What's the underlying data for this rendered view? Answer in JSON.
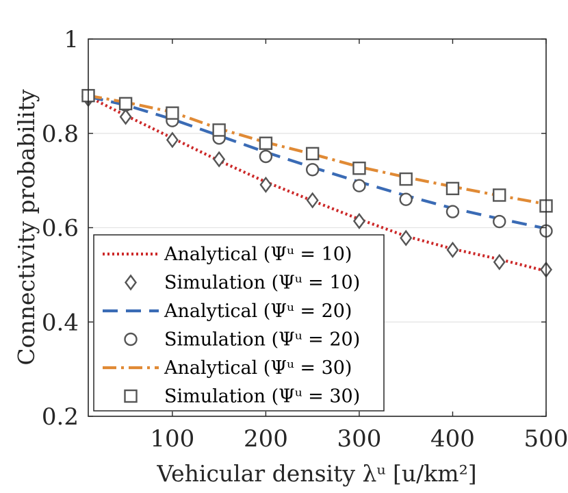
{
  "chart_data": {
    "type": "line",
    "xlabel": "Vehicular density λᵘ [u/km²]",
    "ylabel": "Connectivity probability",
    "xlim": [
      10,
      500
    ],
    "ylim": [
      0.2,
      1.0
    ],
    "xticks": [
      100,
      200,
      300,
      400,
      500
    ],
    "xtick_labels": [
      "100",
      "200",
      "300",
      "400",
      "500"
    ],
    "yticks": [
      0.2,
      0.4,
      0.6,
      0.8,
      1.0
    ],
    "ytick_labels": [
      "0.2",
      "0.4",
      "0.6",
      "0.8",
      "1"
    ],
    "grid": "horizontal",
    "legend_position": "lower-left",
    "series": [
      {
        "name": "Analytical (Ψᵘ = 10)",
        "kind": "line",
        "linestyle": "dotted",
        "color": "#cc2828",
        "x": [
          10,
          50,
          100,
          150,
          200,
          250,
          300,
          350,
          400,
          450,
          500
        ],
        "y": [
          0.878,
          0.838,
          0.79,
          0.742,
          0.697,
          0.657,
          0.618,
          0.582,
          0.555,
          0.533,
          0.508
        ]
      },
      {
        "name": "Simulation (Ψᵘ = 10)",
        "kind": "marker",
        "marker": "diamond",
        "color": "#555555",
        "x": [
          10,
          50,
          100,
          150,
          200,
          250,
          300,
          350,
          400,
          450,
          500
        ],
        "y": [
          0.873,
          0.835,
          0.786,
          0.745,
          0.691,
          0.658,
          0.614,
          0.578,
          0.553,
          0.527,
          0.511
        ]
      },
      {
        "name": "Analytical (Ψᵘ = 20)",
        "kind": "line",
        "linestyle": "dashed",
        "color": "#3a6bb5",
        "x": [
          10,
          50,
          100,
          150,
          200,
          250,
          300,
          350,
          400,
          450,
          500
        ],
        "y": [
          0.878,
          0.86,
          0.83,
          0.795,
          0.76,
          0.728,
          0.697,
          0.668,
          0.641,
          0.619,
          0.598
        ]
      },
      {
        "name": "Simulation (Ψᵘ = 20)",
        "kind": "marker",
        "marker": "circle",
        "color": "#555555",
        "x": [
          10,
          50,
          100,
          150,
          200,
          250,
          300,
          350,
          400,
          450,
          500
        ],
        "y": [
          0.878,
          0.86,
          0.827,
          0.79,
          0.751,
          0.723,
          0.689,
          0.66,
          0.634,
          0.613,
          0.593
        ]
      },
      {
        "name": "Analytical (Ψᵘ = 30)",
        "kind": "line",
        "linestyle": "dashdot",
        "color": "#e08a35",
        "x": [
          10,
          50,
          100,
          150,
          200,
          250,
          300,
          350,
          400,
          450,
          500
        ],
        "y": [
          0.88,
          0.866,
          0.845,
          0.81,
          0.781,
          0.756,
          0.729,
          0.707,
          0.687,
          0.668,
          0.65
        ]
      },
      {
        "name": "Simulation (Ψᵘ = 30)",
        "kind": "marker",
        "marker": "square",
        "color": "#555555",
        "x": [
          10,
          50,
          100,
          150,
          200,
          250,
          300,
          350,
          400,
          450,
          500
        ],
        "y": [
          0.88,
          0.863,
          0.843,
          0.807,
          0.779,
          0.757,
          0.726,
          0.703,
          0.683,
          0.669,
          0.646
        ]
      }
    ]
  }
}
